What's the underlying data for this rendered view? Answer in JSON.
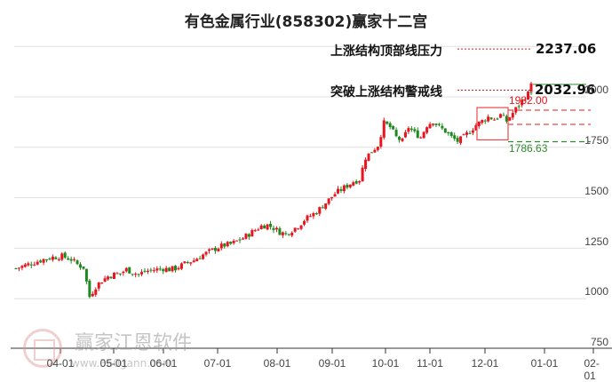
{
  "title": "有色金属行业(858302)赢家十二宫",
  "colors": {
    "up": "#e8141e",
    "down": "#1e8a1e",
    "grid": "#e0e0e0",
    "pressure_line": "#e8141e",
    "support_line": "#2e8b2e",
    "box": "#e84b4b"
  },
  "annotations": {
    "pressure_label": "上涨结构顶部线压力",
    "pressure_value": "2237.06",
    "warning_label": "突破上涨结构警戒线",
    "warning_value": "2032.96",
    "box_high": "1982.00",
    "box_low": "1786.63"
  },
  "watermark": {
    "brand": "赢家江恩软件",
    "url": "www.360gann.com"
  },
  "chart_data": {
    "type": "candlestick",
    "title": "有色金属行业(858302)赢家十二宫",
    "xlabel": "",
    "ylabel": "",
    "y_ticks": [
      "2000",
      "1750",
      "1500",
      "1250",
      "1000",
      "750"
    ],
    "x_ticks": [
      "04-01",
      "05-01",
      "06-01",
      "07-01",
      "08-01",
      "09-01",
      "10-01",
      "11-01",
      "12-01",
      "01-01",
      "02-01"
    ],
    "ylim": [
      750,
      2280
    ],
    "grid": true,
    "levels": {
      "top_pressure": 2237.06,
      "warning_line": 2032.96,
      "box_high": 1982.0,
      "box_low": 1786.63
    },
    "series_approx_close": [
      [
        0,
        1150
      ],
      [
        3,
        1165
      ],
      [
        6,
        1180
      ],
      [
        9,
        1195
      ],
      [
        12,
        1205
      ],
      [
        15,
        1210
      ],
      [
        18,
        1195
      ],
      [
        20,
        1170
      ],
      [
        22,
        1155
      ],
      [
        24,
        1010
      ],
      [
        26,
        1060
      ],
      [
        28,
        1090
      ],
      [
        30,
        1110
      ],
      [
        32,
        1120
      ],
      [
        34,
        1125
      ],
      [
        36,
        1145
      ],
      [
        38,
        1130
      ],
      [
        40,
        1120
      ],
      [
        42,
        1135
      ],
      [
        44,
        1140
      ],
      [
        46,
        1145
      ],
      [
        48,
        1150
      ],
      [
        50,
        1145
      ],
      [
        52,
        1150
      ],
      [
        54,
        1165
      ],
      [
        56,
        1180
      ],
      [
        58,
        1190
      ],
      [
        60,
        1210
      ],
      [
        62,
        1225
      ],
      [
        64,
        1240
      ],
      [
        66,
        1255
      ],
      [
        68,
        1265
      ],
      [
        70,
        1270
      ],
      [
        72,
        1285
      ],
      [
        74,
        1300
      ],
      [
        76,
        1320
      ],
      [
        78,
        1340
      ],
      [
        80,
        1360
      ],
      [
        82,
        1365
      ],
      [
        84,
        1350
      ],
      [
        86,
        1330
      ],
      [
        88,
        1320
      ],
      [
        90,
        1340
      ],
      [
        92,
        1360
      ],
      [
        94,
        1390
      ],
      [
        96,
        1410
      ],
      [
        98,
        1430
      ],
      [
        100,
        1460
      ],
      [
        102,
        1490
      ],
      [
        104,
        1520
      ],
      [
        106,
        1540
      ],
      [
        108,
        1560
      ],
      [
        110,
        1580
      ],
      [
        112,
        1590
      ],
      [
        114,
        1700
      ],
      [
        116,
        1730
      ],
      [
        118,
        1760
      ],
      [
        120,
        1870
      ],
      [
        122,
        1850
      ],
      [
        124,
        1800
      ],
      [
        126,
        1780
      ],
      [
        128,
        1850
      ],
      [
        130,
        1820
      ],
      [
        132,
        1800
      ],
      [
        134,
        1860
      ],
      [
        136,
        1880
      ],
      [
        138,
        1850
      ],
      [
        140,
        1830
      ],
      [
        142,
        1800
      ],
      [
        144,
        1780
      ],
      [
        146,
        1800
      ],
      [
        148,
        1830
      ],
      [
        150,
        1860
      ],
      [
        152,
        1880
      ],
      [
        154,
        1900
      ],
      [
        156,
        1890
      ],
      [
        158,
        1910
      ],
      [
        160,
        1880
      ],
      [
        162,
        1920
      ],
      [
        164,
        1960
      ],
      [
        166,
        2000
      ],
      [
        168,
        2030
      ]
    ]
  }
}
